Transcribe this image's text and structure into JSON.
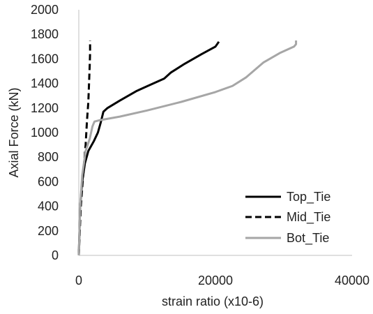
{
  "chart_data": {
    "type": "line",
    "title": "",
    "xlabel": "strain ratio (x10-6)",
    "ylabel": "Axial Force (kN)",
    "xlim": [
      0,
      40000
    ],
    "ylim": [
      0,
      2000
    ],
    "x_ticks": [
      0,
      20000,
      40000
    ],
    "y_ticks": [
      0,
      200,
      400,
      600,
      800,
      1000,
      1200,
      1400,
      1600,
      1800,
      2000
    ],
    "grid": false,
    "legend_position": "bottom-right",
    "series": [
      {
        "name": "Top_Tie",
        "color": "#000000",
        "dash": "solid",
        "x": [
          0,
          200,
          500,
          900,
          1400,
          2200,
          2800,
          3200,
          3600,
          4200,
          6000,
          8500,
          10500,
          12500,
          13500,
          15500,
          18000,
          20000,
          20500
        ],
        "y": [
          0,
          400,
          600,
          750,
          850,
          930,
          1000,
          1080,
          1170,
          1200,
          1260,
          1340,
          1390,
          1440,
          1490,
          1560,
          1640,
          1700,
          1740
        ]
      },
      {
        "name": "Mid_Tie",
        "color": "#000000",
        "dash": "dashed",
        "x": [
          0,
          300,
          700,
          1000,
          1200,
          1400,
          1500,
          1600,
          1650,
          1650
        ],
        "y": [
          0,
          400,
          700,
          900,
          1100,
          1250,
          1400,
          1550,
          1650,
          1750
        ]
      },
      {
        "name": "Bot_Tie",
        "color": "#a6a6a6",
        "dash": "solid",
        "x": [
          0,
          200,
          500,
          1000,
          1600,
          2000,
          2300,
          3000,
          6000,
          10000,
          15000,
          20000,
          22500,
          24500,
          27000,
          29500,
          31500,
          31800,
          31800
        ],
        "y": [
          0,
          400,
          650,
          850,
          950,
          1050,
          1090,
          1100,
          1130,
          1180,
          1250,
          1330,
          1380,
          1450,
          1570,
          1650,
          1700,
          1720,
          1750
        ]
      }
    ]
  }
}
